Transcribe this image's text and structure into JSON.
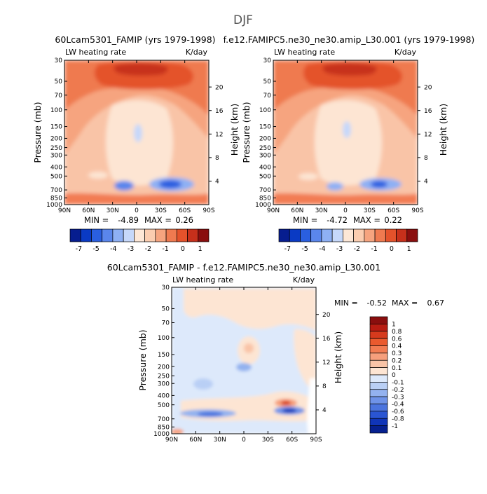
{
  "figure": {
    "season": "DJF"
  },
  "chart_data": [
    {
      "type": "heatmap",
      "title": "60Lcam5301_FAMIP (yrs 1979-1998)",
      "field_label": "LW heating rate",
      "units": "K/day",
      "xlabel": "",
      "ylabel": "Pressure (mb)",
      "ylabel_right": "Height (km)",
      "x_ticks": [
        "90N",
        "60N",
        "30N",
        "0",
        "30S",
        "60S",
        "90S"
      ],
      "y_ticks": [
        "30",
        "50",
        "70",
        "100",
        "150",
        "200",
        "250",
        "300",
        "400",
        "500",
        "700",
        "850",
        "1000"
      ],
      "height_ticks": [
        "20",
        "16",
        "12",
        "8",
        "4"
      ],
      "min_label": "MIN =",
      "min": "-4.89",
      "max_label": "MAX =",
      "max": "0.26",
      "colorbar_labels": [
        "-7",
        "-5",
        "-4",
        "-3",
        "-2",
        "-1",
        "0",
        "1"
      ],
      "colorbar_colors": [
        "#061d8f",
        "#0a3ac4",
        "#2a5fe0",
        "#5a86ec",
        "#8eb0f4",
        "#c6d8fa",
        "#fde7d6",
        "#fbcdb0",
        "#f6a47f",
        "#ef7a50",
        "#e4522b",
        "#c7301b",
        "#8a0e0e"
      ]
    },
    {
      "type": "heatmap",
      "title": "f.e12.FAMIPC5.ne30_ne30.amip_L30.001 (yrs 1979-1998)",
      "field_label": "LW heating rate",
      "units": "K/day",
      "xlabel": "",
      "ylabel": "Pressure (mb)",
      "ylabel_right": "Height (km)",
      "x_ticks": [
        "90N",
        "60N",
        "30N",
        "0",
        "30S",
        "60S",
        "90S"
      ],
      "y_ticks": [
        "30",
        "50",
        "70",
        "100",
        "150",
        "200",
        "250",
        "300",
        "400",
        "500",
        "700",
        "850",
        "1000"
      ],
      "height_ticks": [
        "20",
        "16",
        "12",
        "8",
        "4"
      ],
      "min_label": "MIN =",
      "min": "-4.72",
      "max_label": "MAX =",
      "max": "0.22",
      "colorbar_labels": [
        "-7",
        "-5",
        "-4",
        "-3",
        "-2",
        "-1",
        "0",
        "1"
      ],
      "colorbar_colors": [
        "#061d8f",
        "#0a3ac4",
        "#2a5fe0",
        "#5a86ec",
        "#8eb0f4",
        "#c6d8fa",
        "#fde7d6",
        "#fbcdb0",
        "#f6a47f",
        "#ef7a50",
        "#e4522b",
        "#c7301b",
        "#8a0e0e"
      ]
    },
    {
      "type": "heatmap",
      "title": "60Lcam5301_FAMIP - f.e12.FAMIPC5.ne30_ne30.amip_L30.001",
      "field_label": "LW heating rate",
      "units": "K/day",
      "xlabel": "",
      "ylabel": "Pressure (mb)",
      "ylabel_right": "Height (km)",
      "x_ticks": [
        "90N",
        "60N",
        "30N",
        "0",
        "30S",
        "60S",
        "90S"
      ],
      "y_ticks": [
        "30",
        "50",
        "70",
        "100",
        "150",
        "200",
        "250",
        "300",
        "400",
        "500",
        "700",
        "850",
        "1000"
      ],
      "height_ticks": [
        "20",
        "16",
        "12",
        "8",
        "4"
      ],
      "min_label": "MIN =",
      "min": "-0.52",
      "max_label": "MAX =",
      "max": "0.67",
      "colorbar_labels": [
        "1",
        "0.8",
        "0.6",
        "0.4",
        "0.3",
        "0.2",
        "0.1",
        "0",
        "-0.1",
        "-0.2",
        "-0.3",
        "-0.4",
        "-0.6",
        "-0.8",
        "-1"
      ],
      "colorbar_colors": [
        "#8a0e0e",
        "#b81c12",
        "#d63a1d",
        "#ea5a2e",
        "#f27c52",
        "#f69f7c",
        "#f9c4a7",
        "#fde5d3",
        "#dde9fb",
        "#b9cff5",
        "#93b2ef",
        "#6f93e8",
        "#4b74de",
        "#2a55d2",
        "#1035b8",
        "#06208f"
      ]
    }
  ]
}
